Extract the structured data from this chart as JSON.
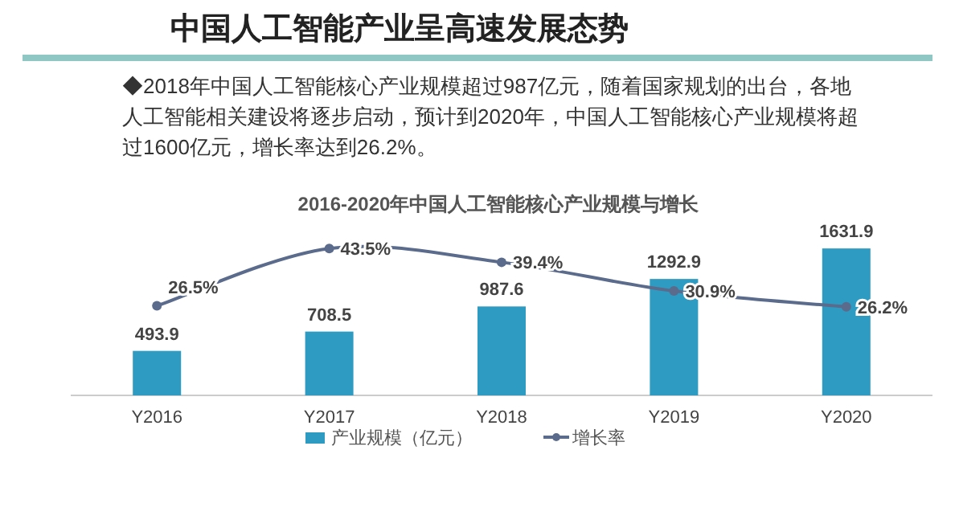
{
  "chart_data": {
    "type": "bar",
    "title": "中国人工智能产业呈高速发展态势",
    "subtitle": "2016-2020年中国人工智能核心产业规模与增长",
    "annotations": [
      "◆2018年中国人工智能核心产业规模超过987亿元，随着国家规划的出台，各地人工智能相关建设将逐步启动，预计到2020年，中国人工智能核心产业规模将超过1600亿元，增长率达到26.2%。"
    ],
    "categories": [
      "Y2016",
      "Y2017",
      "Y2018",
      "Y2019",
      "Y2020"
    ],
    "series": [
      {
        "name": "产业规模（亿元）",
        "color": "#2e9bc2",
        "values": [
          493.9,
          708.5,
          987.6,
          1292.9,
          1631.9
        ],
        "value_labels": [
          "493.9",
          "708.5",
          "987.6",
          "1292.9",
          "1631.9"
        ]
      },
      {
        "name": "增长率",
        "type": "line",
        "axis": "y2",
        "color": "#5b6b8c",
        "marker": "circle",
        "values": [
          26.5,
          43.5,
          39.4,
          30.9,
          26.2
        ],
        "value_labels": [
          "26.5%",
          "43.5%",
          "39.4%",
          "30.9%",
          "26.2%"
        ]
      }
    ],
    "legend": "bottom"
  }
}
